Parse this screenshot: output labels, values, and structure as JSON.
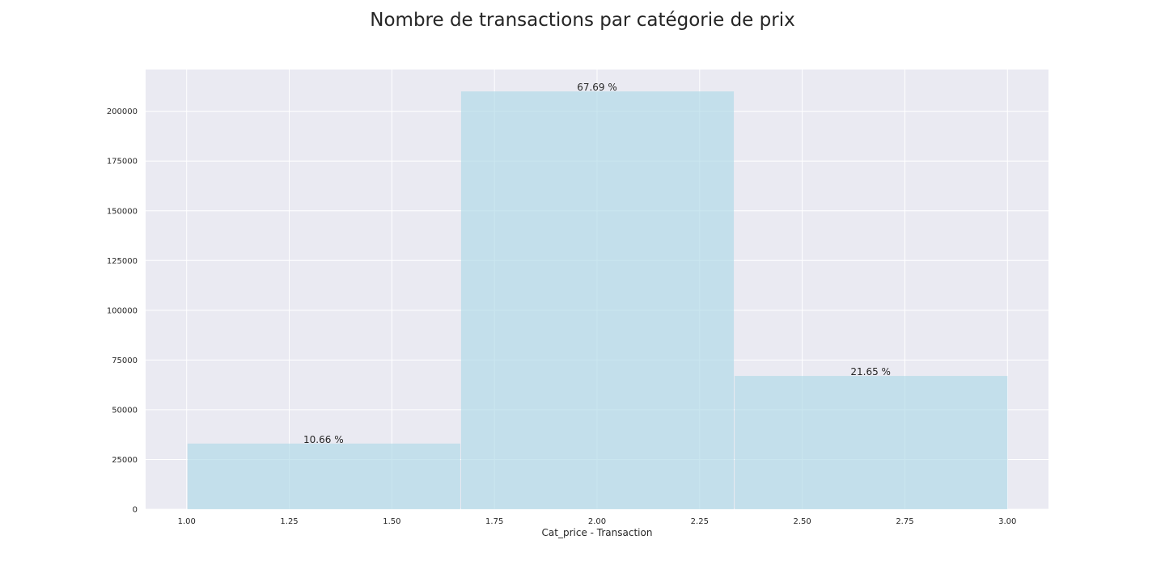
{
  "chart_data": {
    "type": "bar",
    "title": "Nombre de transactions par catégorie de prix",
    "xlabel": "Cat_price - Transaction",
    "ylabel": "",
    "xlim": [
      0.9,
      3.1
    ],
    "ylim": [
      0,
      221000
    ],
    "xticks": [
      "1.00",
      "1.25",
      "1.50",
      "1.75",
      "2.00",
      "2.25",
      "2.50",
      "2.75",
      "3.00"
    ],
    "yticks": [
      "0",
      "25000",
      "50000",
      "75000",
      "100000",
      "125000",
      "150000",
      "175000",
      "200000"
    ],
    "bins": [
      {
        "x0": 1.0,
        "x1": 1.6667,
        "value": 33000,
        "label": "10.66 %"
      },
      {
        "x0": 1.6667,
        "x1": 2.3333,
        "value": 210000,
        "label": "67.69 %"
      },
      {
        "x0": 2.3333,
        "x1": 3.0,
        "value": 67000,
        "label": "21.65 %"
      }
    ],
    "grid": true,
    "colors": {
      "bar": "#add8e6",
      "background": "#eaeaf2",
      "grid": "#ffffff"
    }
  }
}
